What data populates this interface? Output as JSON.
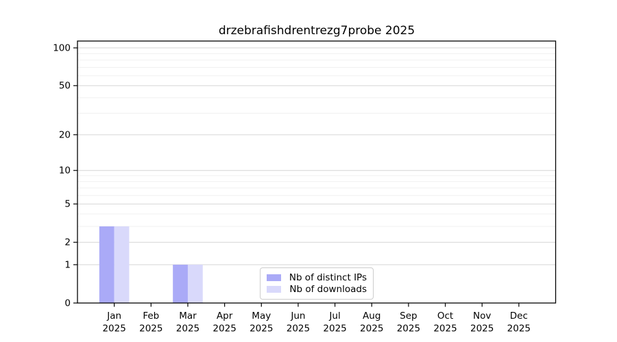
{
  "title": "drzebrafishdrentrezg7probe 2025",
  "legend": {
    "items": [
      {
        "label": "Nb of distinct IPs",
        "color": "#aaaaf7"
      },
      {
        "label": "Nb of downloads",
        "color": "#d9d9fb"
      }
    ]
  },
  "chart_data": {
    "type": "bar",
    "title": "drzebrafishdrentrezg7probe 2025",
    "categories": [
      "Jan",
      "Feb",
      "Mar",
      "Apr",
      "May",
      "Jun",
      "Jul",
      "Aug",
      "Sep",
      "Oct",
      "Nov",
      "Dec"
    ],
    "year": "2025",
    "series": [
      {
        "name": "Nb of distinct IPs",
        "color": "#aaaaf7",
        "values": [
          3,
          0,
          1,
          0,
          0,
          0,
          0,
          0,
          0,
          0,
          0,
          0
        ]
      },
      {
        "name": "Nb of downloads",
        "color": "#d9d9fb",
        "values": [
          3,
          0,
          1,
          0,
          0,
          0,
          0,
          0,
          0,
          0,
          0,
          0
        ]
      }
    ],
    "xlabel": "",
    "ylabel": "",
    "y_scale": "log10(1+y)",
    "y_ticks": [
      0,
      1,
      2,
      5,
      10,
      20,
      50,
      100
    ],
    "y_minor_gridlines": [
      3,
      4,
      6,
      7,
      8,
      9,
      30,
      40,
      60,
      70,
      80,
      90
    ],
    "ylim": [
      0,
      113
    ],
    "grid": "horizontal",
    "legend_position": "lower center"
  }
}
